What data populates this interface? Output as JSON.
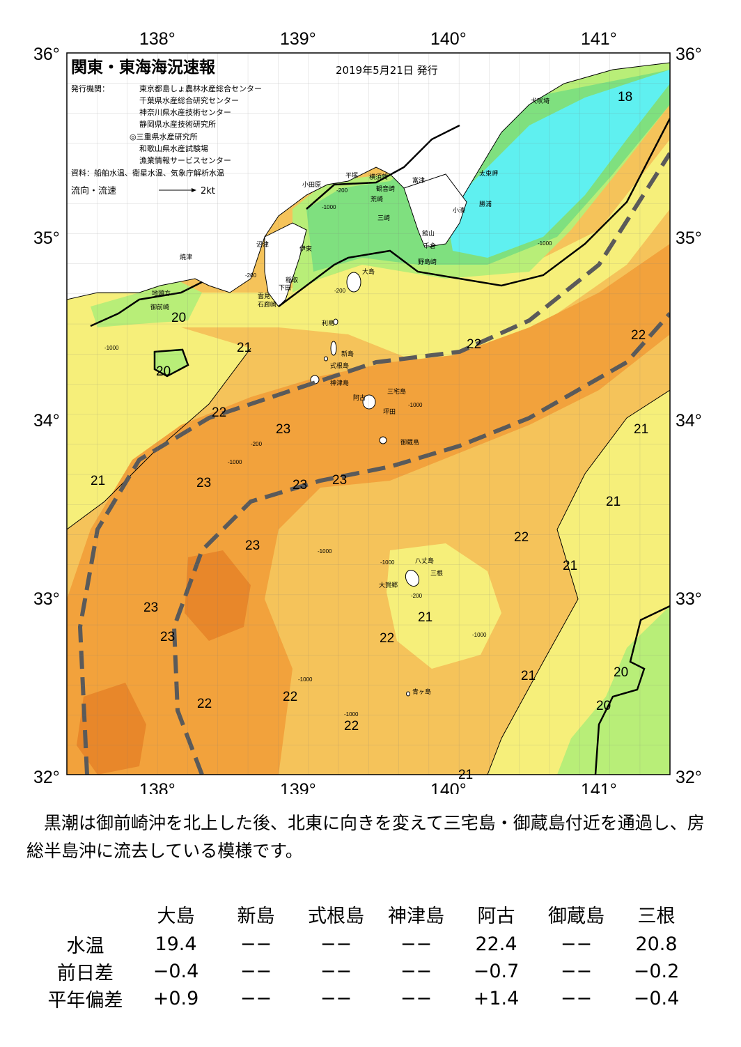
{
  "map": {
    "title": "関東・東海海況速報",
    "issue_date": "2019年5月21日 発行",
    "publisher_label": "発行機関：",
    "publishers": [
      "東京都島しょ農林水産総合センター",
      "千葉県水産総合研究センター",
      "神奈川県水産技術センター",
      "静岡県水産技術研究所",
      "◎三重県水産研究所",
      "和歌山県水産試験場",
      "漁業情報サービスセンター"
    ],
    "sources": "資料：船舶水温、衛星水温、気象庁解析水温",
    "flow_legend_label": "流向・流速",
    "flow_legend_speed": "2kt",
    "lon_labels": [
      "138°",
      "139°",
      "140°",
      "141°"
    ],
    "lat_labels": [
      "36°",
      "35°",
      "34°",
      "33°",
      "32°"
    ],
    "place_names": {
      "inubozaki": "犬吠埼",
      "taitomisaki": "太東岬",
      "katsuura": "勝浦",
      "kominato": "小湊",
      "futtsu": "富津",
      "kannonzaki": "観音崎",
      "yokosuka": "横須賀",
      "hiratsuka": "平塚",
      "odawara": "小田原",
      "arasaki": "荒崎",
      "misaki": "三崎",
      "tateyama": "館山",
      "chikura": "千倉",
      "nojimazaki": "野島崎",
      "numazu": "沼津",
      "ito": "伊東",
      "yaizu": "焼津",
      "jitogata": "地頭方",
      "omaezaki": "御前崎",
      "inatori": "稲取",
      "shimoda": "下田",
      "kumomi": "雲見",
      "irozaki": "石廊崎",
      "oshima": "大島",
      "toshima": "利島",
      "niijima": "新島",
      "shikinejima": "式根島",
      "kozushima": "神津島",
      "miyakejima": "三宅島",
      "ako": "阿古",
      "tsubota": "坪田",
      "mikurajima": "御蔵島",
      "hachijojima": "八丈島",
      "mitsune": "三根",
      "okago": "大賀郷",
      "aogashima": "青ヶ島"
    },
    "isotherm_labels": [
      "18",
      "20",
      "20",
      "21",
      "22",
      "22",
      "23",
      "23",
      "23",
      "21",
      "23",
      "22",
      "23",
      "23",
      "23",
      "21",
      "21",
      "22",
      "21",
      "21",
      "22",
      "21",
      "20",
      "20",
      "22",
      "22",
      "22",
      "21"
    ],
    "depth_labels": [
      "-200",
      "-1000",
      "-200",
      "-1000",
      "-200",
      "-1000",
      "-200",
      "-1000",
      "-1000",
      "-1000",
      "-200",
      "-1000",
      "-1000",
      "-1000",
      "-1000"
    ]
  },
  "description": "黒潮は御前崎沖を北上した後、北東に向きを変えて三宅島・御蔵島付近を通過し、房総半島沖に流去している模様です。",
  "table": {
    "columns": [
      "大島",
      "新島",
      "式根島",
      "神津島",
      "阿古",
      "御蔵島",
      "三根"
    ],
    "rows": [
      {
        "label": "水温",
        "values": [
          "19.4",
          "−−",
          "−−",
          "−−",
          "22.4",
          "−−",
          "20.8"
        ]
      },
      {
        "label": "前日差",
        "values": [
          "−0.4",
          "−−",
          "−−",
          "−−",
          "−0.7",
          "−−",
          "−0.2"
        ]
      },
      {
        "label": "平年偏差",
        "values": [
          "+0.9",
          "−−",
          "−−",
          "−−",
          "+1.4",
          "−−",
          "−0.4"
        ]
      }
    ]
  },
  "colors": {
    "t18": "#5ff0f0",
    "t19": "#7fe07f",
    "t20": "#b8ee78",
    "t21": "#f6ef7a",
    "t22": "#f5c35a",
    "t23": "#f2a23c",
    "t24": "#e8872a",
    "land": "#ffffff",
    "kuroshio_axis": "#5a5a5a"
  }
}
